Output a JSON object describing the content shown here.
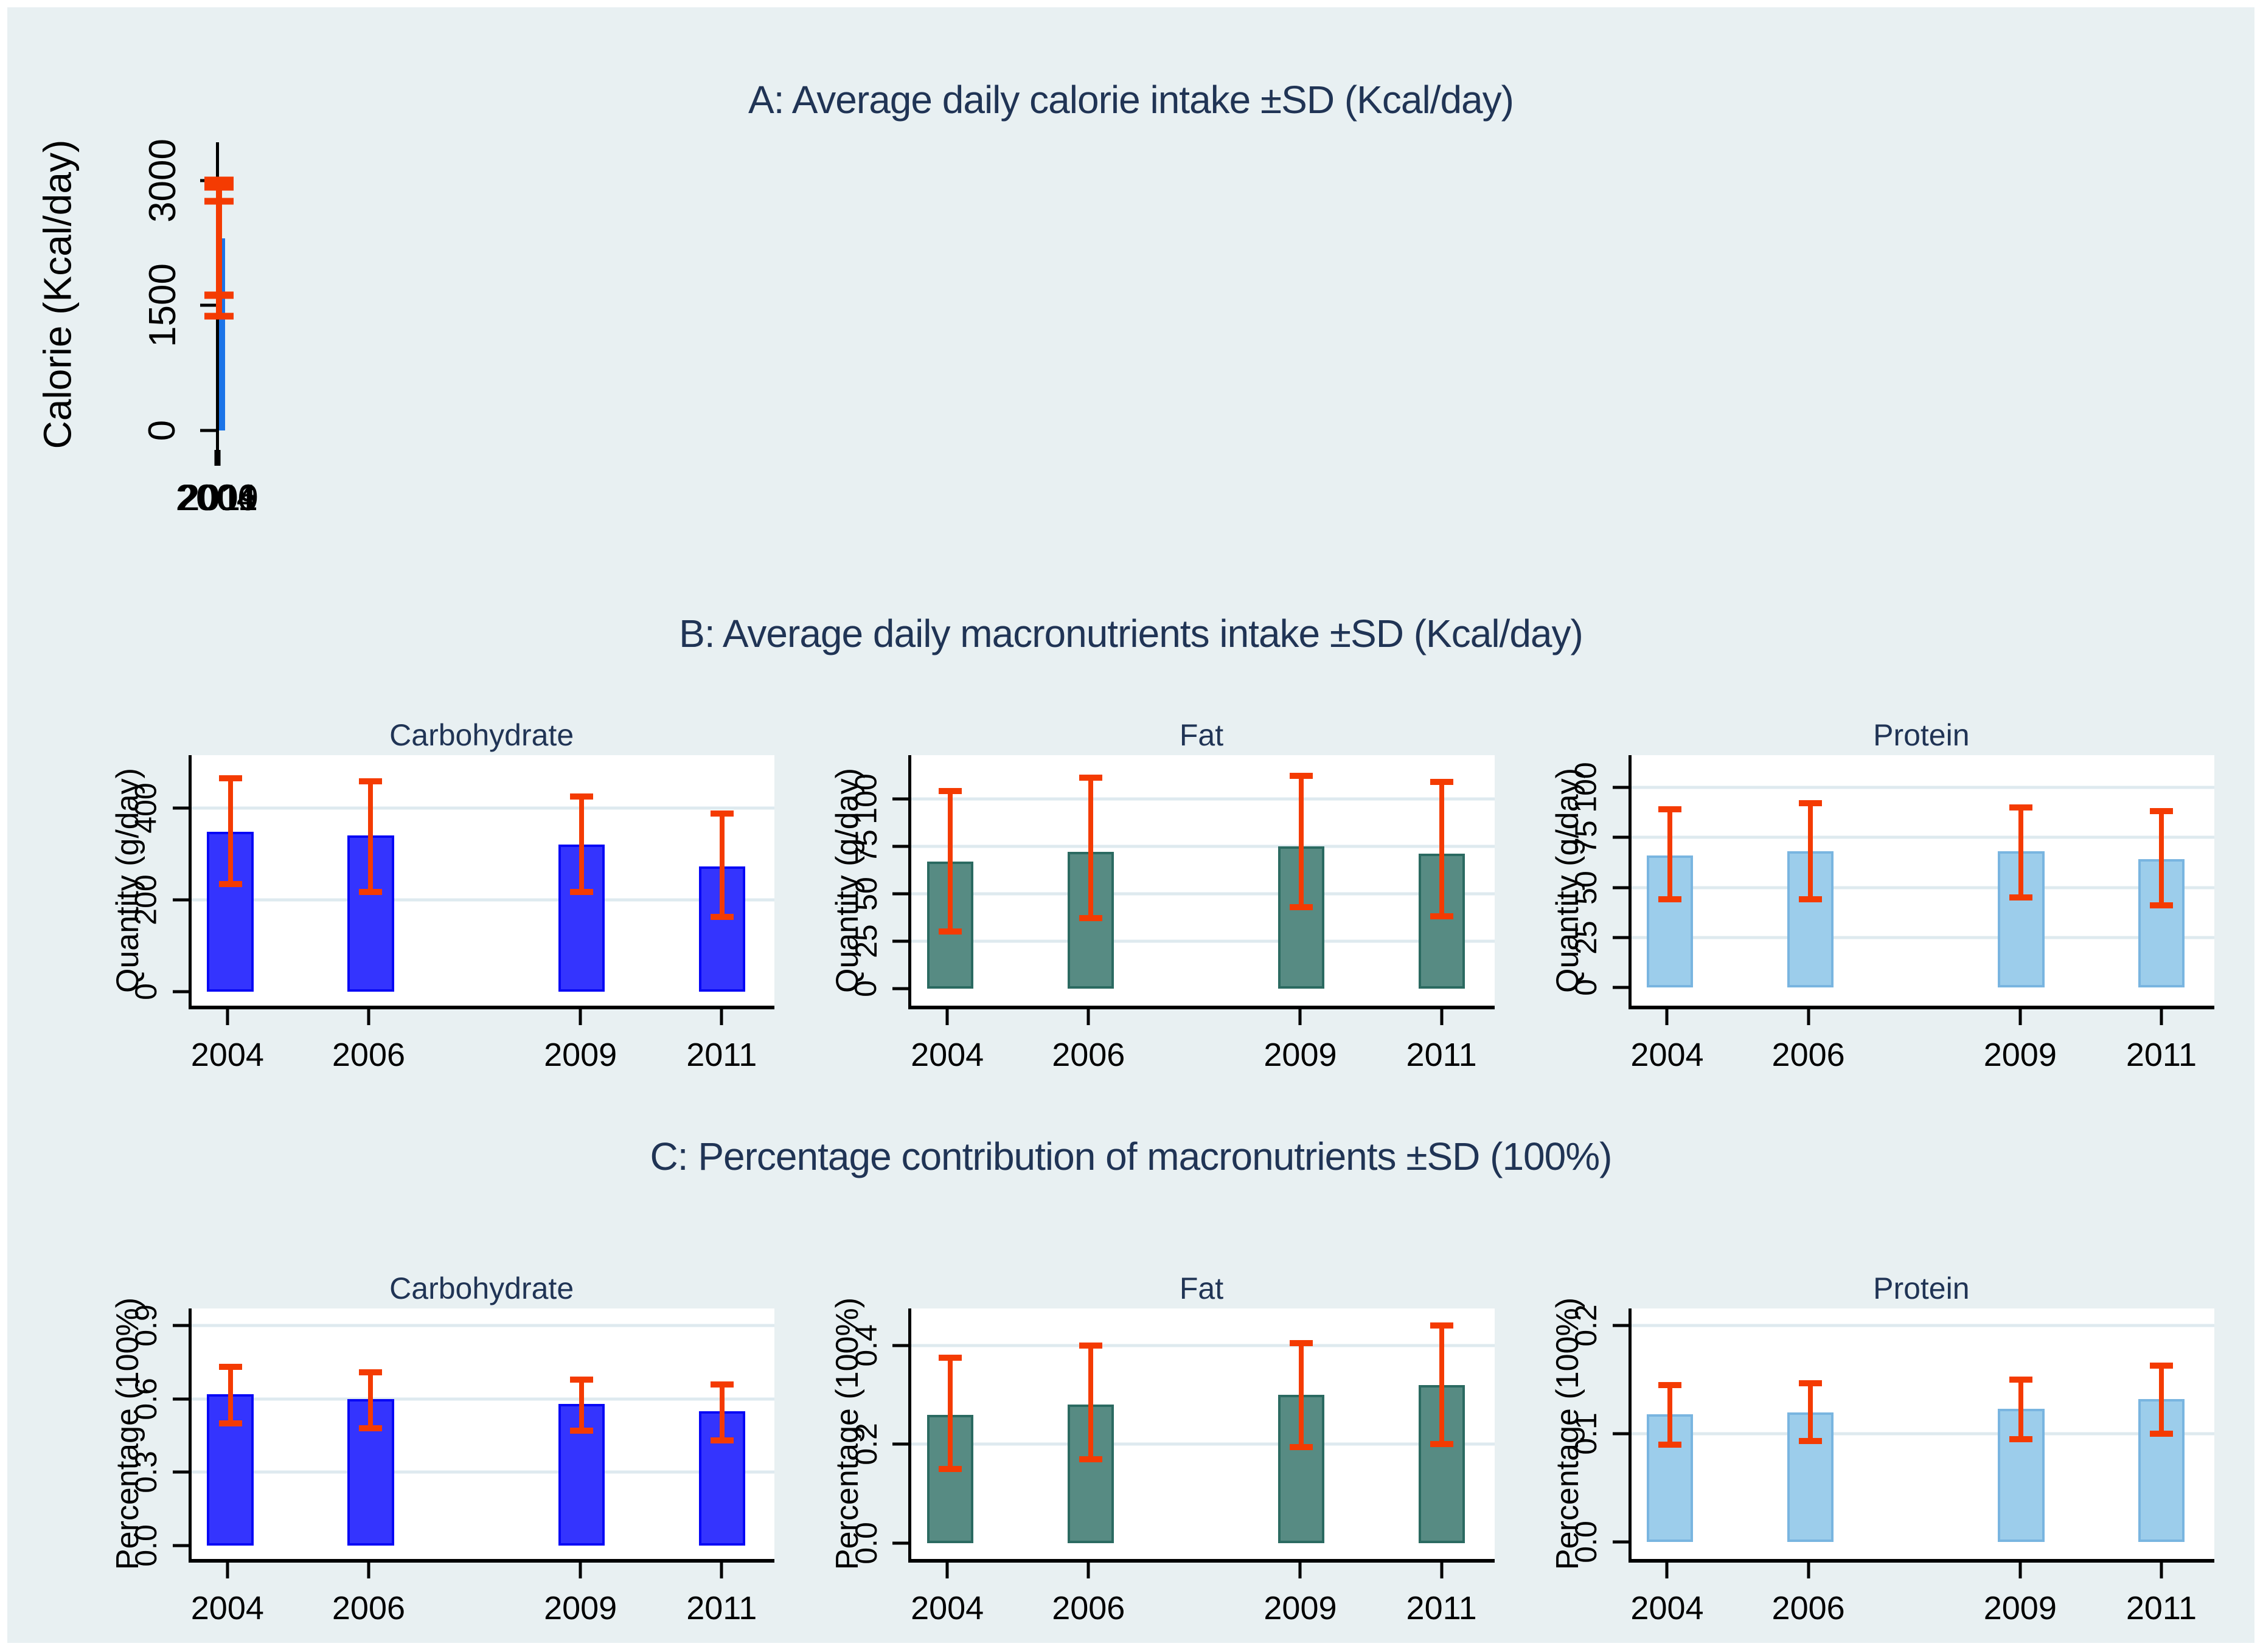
{
  "chart_meta": {
    "page_color": "#FFFFFF",
    "background_color": "#E8F0F2",
    "title_color": "#203455",
    "error_bar_color": "#F43B02",
    "gridline_color": "#DEEAEF",
    "axis_color": "#000000",
    "x_domain": [
      2003.45,
      2011.75
    ],
    "panel_titles": [
      "A: Average daily calorie intake ±SD (Kcal/day)",
      "B: Average daily macronutrients intake ±SD (Kcal/day)",
      "C: Percentage contribution of macronutrients ±SD (100%)"
    ]
  },
  "chart_data": [
    {
      "panel": "A",
      "type": "bar",
      "subtitle": "",
      "size": "large",
      "ylabel": "Calorie (Kcal/day)",
      "xlabel": "",
      "categories": [
        "2004",
        "2006",
        "2009",
        "2011"
      ],
      "values": [
        2300,
        2310,
        2250,
        2030
      ],
      "error_low": [
        1620,
        1630,
        1630,
        1370
      ],
      "error_high": [
        3000,
        3010,
        2920,
        2750
      ],
      "ytick_values": [
        0,
        1500,
        3000
      ],
      "ytick_labels": [
        "0",
        "1500",
        "3000"
      ],
      "ylim": [
        -190,
        3460
      ],
      "grid": true,
      "legend": "none",
      "bar_width_years": 0.84,
      "bar_color": "#3399F6",
      "bar_border_color": "#1B74E8"
    },
    {
      "panel": "B",
      "type": "bar",
      "subtitle": "Carbohydrate",
      "size": "small",
      "ylabel": "Quantity (g/day)",
      "xlabel": "",
      "categories": [
        "2004",
        "2006",
        "2009",
        "2011"
      ],
      "values": [
        348,
        340,
        320,
        273
      ],
      "error_low": [
        235,
        218,
        218,
        163
      ],
      "error_high": [
        465,
        458,
        425,
        388
      ],
      "ytick_values": [
        0,
        200,
        400
      ],
      "ytick_labels": [
        "0",
        "200",
        "400"
      ],
      "ylim": [
        -30,
        515
      ],
      "grid": true,
      "legend": "none",
      "bar_width_years": 0.66,
      "bar_color": "#3434FE",
      "bar_border_color": "#0808F5"
    },
    {
      "panel": "B",
      "type": "bar",
      "subtitle": "Fat",
      "size": "small",
      "ylabel": "Quantity (g/day)",
      "xlabel": "",
      "categories": [
        "2004",
        "2006",
        "2009",
        "2011"
      ],
      "values": [
        67,
        72,
        75,
        71
      ],
      "error_low": [
        30,
        37,
        43,
        38
      ],
      "error_high": [
        104,
        111,
        112,
        109
      ],
      "ytick_values": [
        0,
        25,
        50,
        75,
        100
      ],
      "ytick_labels": [
        "0",
        "25",
        "50",
        "75",
        "100"
      ],
      "ylim": [
        -9,
        123
      ],
      "grid": true,
      "legend": "none",
      "bar_width_years": 0.66,
      "bar_color": "#578B83",
      "bar_border_color": "#2B6A61"
    },
    {
      "panel": "B",
      "type": "bar",
      "subtitle": "Protein",
      "size": "small",
      "ylabel": "Quantity (g/day)",
      "xlabel": "",
      "categories": [
        "2004",
        "2006",
        "2009",
        "2011"
      ],
      "values": [
        66,
        68,
        68,
        64
      ],
      "error_low": [
        44,
        44,
        45,
        41
      ],
      "error_high": [
        89,
        92,
        90,
        88
      ],
      "ytick_values": [
        0,
        25,
        50,
        75,
        100
      ],
      "ytick_labels": [
        "0",
        "25",
        "50",
        "75",
        "100"
      ],
      "ylim": [
        -9,
        116
      ],
      "grid": true,
      "legend": "none",
      "bar_width_years": 0.66,
      "bar_color": "#9CCDEB",
      "bar_border_color": "#79B5E0"
    },
    {
      "panel": "C",
      "type": "bar",
      "subtitle": "Carbohydrate",
      "size": "small",
      "ylabel": "Percentage (100%)",
      "xlabel": "",
      "categories": [
        "2004",
        "2006",
        "2009",
        "2011"
      ],
      "values": [
        0.62,
        0.6,
        0.58,
        0.55
      ],
      "error_low": [
        0.5,
        0.48,
        0.47,
        0.43
      ],
      "error_high": [
        0.73,
        0.71,
        0.68,
        0.66
      ],
      "ytick_values": [
        0,
        0.3,
        0.6,
        0.9
      ],
      "ytick_labels": [
        "0.0",
        "0.3",
        "0.6",
        "0.9"
      ],
      "ylim": [
        -0.055,
        0.97
      ],
      "grid": true,
      "legend": "none",
      "bar_width_years": 0.66,
      "bar_color": "#3434FE",
      "bar_border_color": "#0808F5"
    },
    {
      "panel": "C",
      "type": "bar",
      "subtitle": "Fat",
      "size": "small",
      "ylabel": "Percentage (100%)",
      "xlabel": "",
      "categories": [
        "2004",
        "2006",
        "2009",
        "2011"
      ],
      "values": [
        0.26,
        0.28,
        0.3,
        0.32
      ],
      "error_low": [
        0.15,
        0.17,
        0.195,
        0.2
      ],
      "error_high": [
        0.375,
        0.4,
        0.405,
        0.44
      ],
      "ytick_values": [
        0,
        0.2,
        0.4
      ],
      "ytick_labels": [
        "0.0",
        "0.2",
        "0.4"
      ],
      "ylim": [
        -0.032,
        0.475
      ],
      "grid": true,
      "legend": "none",
      "bar_width_years": 0.66,
      "bar_color": "#578B83",
      "bar_border_color": "#2B6A61"
    },
    {
      "panel": "C",
      "type": "bar",
      "subtitle": "Protein",
      "size": "small",
      "ylabel": "Percentage (100%)",
      "xlabel": "",
      "categories": [
        "2004",
        "2006",
        "2009",
        "2011"
      ],
      "values": [
        0.118,
        0.12,
        0.123,
        0.132
      ],
      "error_low": [
        0.09,
        0.093,
        0.095,
        0.1
      ],
      "error_high": [
        0.145,
        0.147,
        0.15,
        0.163
      ],
      "ytick_values": [
        0,
        0.1,
        0.2
      ],
      "ytick_labels": [
        "0.0",
        "0.1",
        "0.2"
      ],
      "ylim": [
        -0.016,
        0.216
      ],
      "grid": true,
      "legend": "none",
      "bar_width_years": 0.66,
      "bar_color": "#9CCDEB",
      "bar_border_color": "#79B5E0"
    }
  ]
}
